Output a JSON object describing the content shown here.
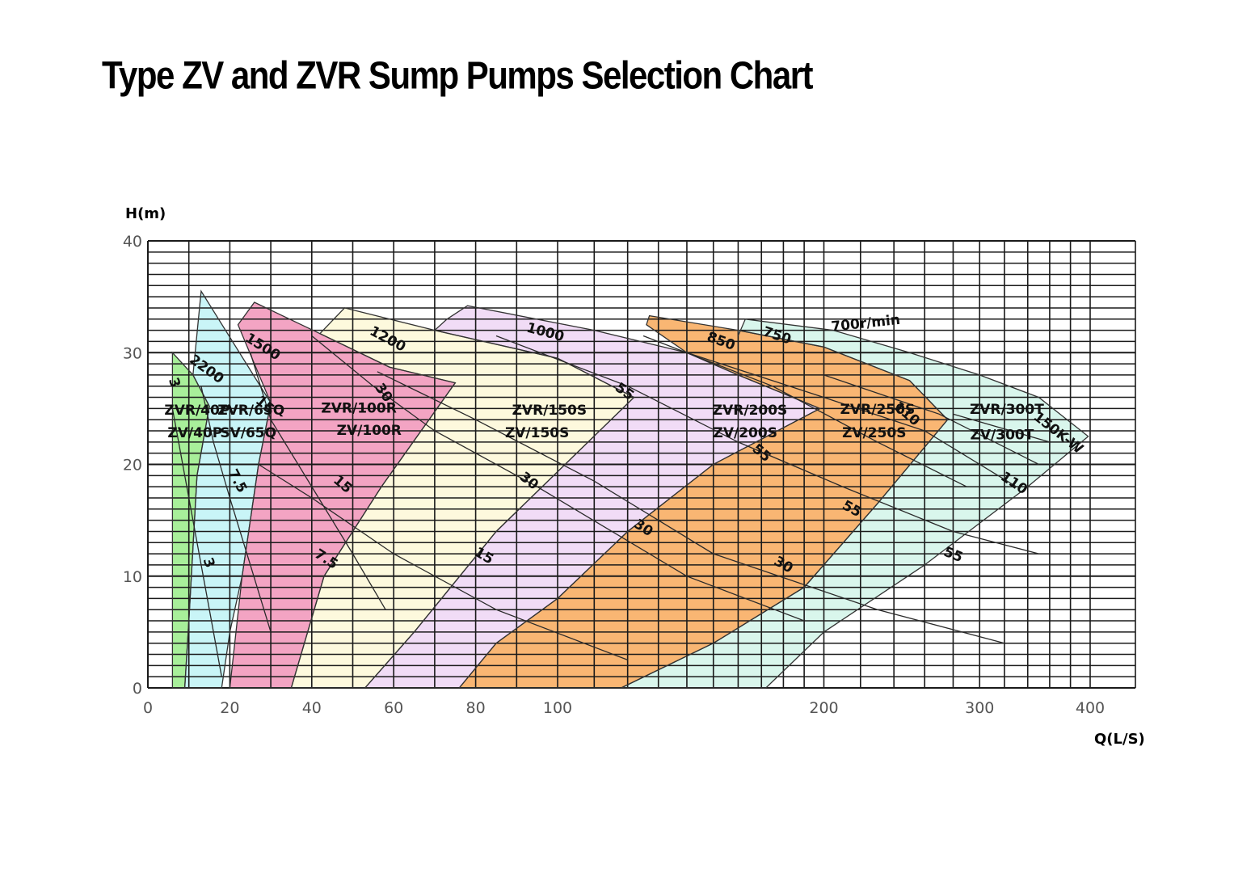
{
  "chart_data": {
    "type": "area",
    "title": "Type ZV and ZVR Sump Pumps Selection Chart",
    "xlabel": "Q(L/S)",
    "ylabel": "H(m)",
    "xscale": "log",
    "x_ticks": [
      "0",
      "20",
      "40",
      "60",
      "80",
      "100",
      "200",
      "300",
      "400"
    ],
    "y_ticks": [
      "0",
      "10",
      "20",
      "30",
      "40"
    ],
    "ylim": [
      0,
      40
    ],
    "grid": true,
    "colors": {
      "zv40p": "#a8ef9a",
      "zv65q": "#c9f5f7",
      "zv100r": "#f3a4c3",
      "zv150s": "#fdf9dd",
      "zv200s": "#f1dcf6",
      "zv250s": "#f9b673",
      "zv300t": "#d9f6ec",
      "grid": "#1a1a1a"
    },
    "regions": [
      {
        "model_top": "ZVR/40P",
        "model_bottom": "ZV/40P",
        "color": "zv40p",
        "poly": [
          [
            6,
            0
          ],
          [
            6,
            30
          ],
          [
            11,
            28
          ],
          [
            15,
            25.2
          ],
          [
            12,
            19
          ],
          [
            10,
            6
          ],
          [
            9,
            0
          ]
        ]
      },
      {
        "model_top": "ZVR/65Q",
        "model_bottom": "SV/65Q",
        "color": "zv65q",
        "poly": [
          [
            11,
            28
          ],
          [
            13,
            35.5
          ],
          [
            30,
            25.5
          ],
          [
            27,
            20
          ],
          [
            23,
            10
          ],
          [
            20,
            5
          ],
          [
            18,
            0
          ],
          [
            9,
            0
          ],
          [
            10,
            6
          ],
          [
            12,
            19
          ],
          [
            15,
            25.2
          ]
        ]
      },
      {
        "model_top": "ZVR/100R",
        "model_bottom": "ZV/100R",
        "color": "zv100r",
        "poly": [
          [
            22,
            32.5
          ],
          [
            26,
            34.5
          ],
          [
            42,
            31.7
          ],
          [
            59,
            28.7
          ],
          [
            75,
            27.3
          ],
          [
            57,
            18
          ],
          [
            43,
            10
          ],
          [
            35,
            0
          ],
          [
            20,
            0
          ],
          [
            23,
            10
          ],
          [
            27,
            20
          ],
          [
            30,
            25.5
          ]
        ]
      },
      {
        "model_top": "ZVR/150S",
        "model_bottom": "ZV/150S",
        "color": "zv150s",
        "poly": [
          [
            48,
            34
          ],
          [
            70,
            32
          ],
          [
            100,
            29.5
          ],
          [
            122,
            26
          ],
          [
            85,
            14
          ],
          [
            65,
            5
          ],
          [
            53,
            0
          ],
          [
            35,
            0
          ],
          [
            43,
            10
          ],
          [
            57,
            18
          ],
          [
            75,
            27.3
          ],
          [
            59,
            28.7
          ],
          [
            42,
            31.7
          ]
        ]
      },
      {
        "model_top": "ZVR/200S",
        "model_bottom": "ZV/200S",
        "color": "zv200s",
        "poly": [
          [
            73,
            33
          ],
          [
            78,
            34.2
          ],
          [
            110,
            32
          ],
          [
            140,
            30
          ],
          [
            160,
            28
          ],
          [
            198,
            25
          ],
          [
            150,
            20
          ],
          [
            120,
            14
          ],
          [
            100,
            8
          ],
          [
            85,
            4
          ],
          [
            76,
            0
          ],
          [
            53,
            0
          ],
          [
            65,
            5
          ],
          [
            85,
            14
          ],
          [
            122,
            26
          ],
          [
            100,
            29.5
          ],
          [
            70,
            32
          ]
        ]
      },
      {
        "model_top": "ZVR/250S",
        "model_bottom": "ZV/250S",
        "color": "zv250s",
        "poly": [
          [
            126,
            32.5
          ],
          [
            127,
            33.3
          ],
          [
            160,
            32
          ],
          [
            200,
            30.5
          ],
          [
            250,
            27.5
          ],
          [
            276,
            24
          ],
          [
            230,
            16.5
          ],
          [
            190,
            9
          ],
          [
            150,
            4
          ],
          [
            118,
            0
          ],
          [
            76,
            0
          ],
          [
            85,
            4
          ],
          [
            100,
            8
          ],
          [
            120,
            14
          ],
          [
            150,
            20
          ],
          [
            198,
            25
          ],
          [
            160,
            28
          ],
          [
            140,
            30
          ]
        ]
      },
      {
        "model_top": "ZVR/300T",
        "model_bottom": "ZV/300T",
        "color": "zv300t",
        "poly": [
          [
            160,
            31.5
          ],
          [
            163,
            33
          ],
          [
            205,
            32
          ],
          [
            250,
            30
          ],
          [
            300,
            28
          ],
          [
            350,
            26
          ],
          [
            398,
            22.5
          ],
          [
            340,
            18
          ],
          [
            260,
            11
          ],
          [
            200,
            5
          ],
          [
            172,
            0
          ],
          [
            118,
            0
          ],
          [
            150,
            4
          ],
          [
            190,
            9
          ],
          [
            230,
            16.5
          ],
          [
            276,
            24
          ],
          [
            250,
            27.5
          ],
          [
            200,
            30.5
          ],
          [
            160,
            32
          ]
        ]
      }
    ],
    "curves": [
      {
        "points": [
          [
            6,
            25
          ],
          [
            10,
            17
          ],
          [
            15,
            7
          ],
          [
            18,
            1
          ]
        ]
      },
      {
        "points": [
          [
            13,
            27
          ],
          [
            16,
            22
          ],
          [
            20,
            17
          ],
          [
            25,
            11
          ],
          [
            30,
            5
          ]
        ]
      },
      {
        "points": [
          [
            25,
            30
          ],
          [
            30,
            24
          ],
          [
            40,
            18
          ],
          [
            50,
            12
          ],
          [
            58,
            7
          ]
        ]
      },
      {
        "points": [
          [
            27,
            20
          ],
          [
            40,
            17
          ],
          [
            60,
            12
          ],
          [
            85,
            7
          ],
          [
            120,
            2.5
          ]
        ]
      },
      {
        "points": [
          [
            40,
            31.5
          ],
          [
            55,
            27
          ],
          [
            70,
            23
          ],
          [
            95,
            18
          ],
          [
            140,
            10
          ],
          [
            190,
            6
          ]
        ]
      },
      {
        "points": [
          [
            56,
            28.3
          ],
          [
            80,
            24
          ],
          [
            110,
            18.5
          ],
          [
            150,
            12
          ],
          [
            230,
            7
          ],
          [
            320,
            4
          ]
        ]
      },
      {
        "points": [
          [
            85,
            31.5
          ],
          [
            120,
            27
          ],
          [
            160,
            22
          ],
          [
            210,
            18
          ],
          [
            280,
            14
          ],
          [
            350,
            12
          ]
        ]
      },
      {
        "points": [
          [
            125,
            31.5
          ],
          [
            175,
            27
          ],
          [
            230,
            22
          ],
          [
            290,
            18
          ]
        ]
      },
      {
        "points": [
          [
            140,
            30
          ],
          [
            200,
            26
          ],
          [
            260,
            23
          ],
          [
            330,
            18
          ]
        ]
      },
      {
        "points": [
          [
            200,
            28
          ],
          [
            270,
            24.5
          ],
          [
            350,
            20
          ]
        ]
      },
      {
        "points": [
          [
            280,
            24.5
          ],
          [
            360,
            22
          ]
        ]
      }
    ],
    "curve_labels": [
      {
        "text": "3",
        "x": 6.4,
        "y": 27.3,
        "rot": 70
      },
      {
        "text": "3",
        "x": 14.8,
        "y": 11.2,
        "rot": 70
      },
      {
        "text": "2200",
        "x": 14.3,
        "y": 28.5,
        "rot": 36
      },
      {
        "text": "15",
        "x": 28.5,
        "y": 25.3,
        "rot": 40
      },
      {
        "text": "7.5",
        "x": 21.8,
        "y": 18.5,
        "rot": 62
      },
      {
        "text": "1500",
        "x": 28,
        "y": 30.5,
        "rot": 32
      },
      {
        "text": "30",
        "x": 57.5,
        "y": 26.4,
        "rot": 55
      },
      {
        "text": "15",
        "x": 47.5,
        "y": 18.2,
        "rot": 40
      },
      {
        "text": "7.5",
        "x": 43.5,
        "y": 11.5,
        "rot": 33
      },
      {
        "text": "1200",
        "x": 58.5,
        "y": 31.2,
        "rot": 28
      },
      {
        "text": "55",
        "x": 119,
        "y": 26.5,
        "rot": 36
      },
      {
        "text": "30",
        "x": 93,
        "y": 18.5,
        "rot": 38
      },
      {
        "text": "15",
        "x": 82,
        "y": 11.8,
        "rot": 30
      },
      {
        "text": "1000",
        "x": 97,
        "y": 31.8,
        "rot": 15
      },
      {
        "text": "55",
        "x": 170,
        "y": 21,
        "rot": 40
      },
      {
        "text": "30",
        "x": 125,
        "y": 14.3,
        "rot": 33
      },
      {
        "text": "30",
        "x": 180,
        "y": 11,
        "rot": 30
      },
      {
        "text": "850",
        "x": 153,
        "y": 31,
        "rot": 20
      },
      {
        "text": "55",
        "x": 215,
        "y": 16,
        "rot": 28
      },
      {
        "text": "110",
        "x": 248,
        "y": 24.5,
        "rot": 40
      },
      {
        "text": "750",
        "x": 177,
        "y": 31.5,
        "rot": 18
      },
      {
        "text": "700r/min",
        "x": 223,
        "y": 32.6,
        "rot": -6
      },
      {
        "text": "55",
        "x": 280,
        "y": 11.9,
        "rot": 22
      },
      {
        "text": "110",
        "x": 328,
        "y": 18.3,
        "rot": 34
      },
      {
        "text": "150K-W",
        "x": 368,
        "y": 22.8,
        "rot": 38
      }
    ],
    "model_labels": [
      {
        "text": "ZVR/40P",
        "x": 12,
        "y": 24.8
      },
      {
        "text": "ZV/40P",
        "x": 11.5,
        "y": 22.8
      },
      {
        "text": "ZVR/65Q",
        "x": 25.2,
        "y": 24.8
      },
      {
        "text": "SV/65Q",
        "x": 24.5,
        "y": 22.8
      },
      {
        "text": "ZVR/100R",
        "x": 51.5,
        "y": 25.0
      },
      {
        "text": "ZV/100R",
        "x": 54,
        "y": 23.0
      },
      {
        "text": "ZVR/150S",
        "x": 98,
        "y": 24.8
      },
      {
        "text": "ZV/150S",
        "x": 95,
        "y": 22.8
      },
      {
        "text": "ZVR/200S",
        "x": 165,
        "y": 24.8
      },
      {
        "text": "ZV/200S",
        "x": 163,
        "y": 22.8
      },
      {
        "text": "ZVR/250S",
        "x": 230,
        "y": 24.9
      },
      {
        "text": "ZV/250S",
        "x": 228,
        "y": 22.8
      },
      {
        "text": "ZVR/300T",
        "x": 322,
        "y": 24.9
      },
      {
        "text": "ZV/300T",
        "x": 318,
        "y": 22.6
      }
    ]
  }
}
